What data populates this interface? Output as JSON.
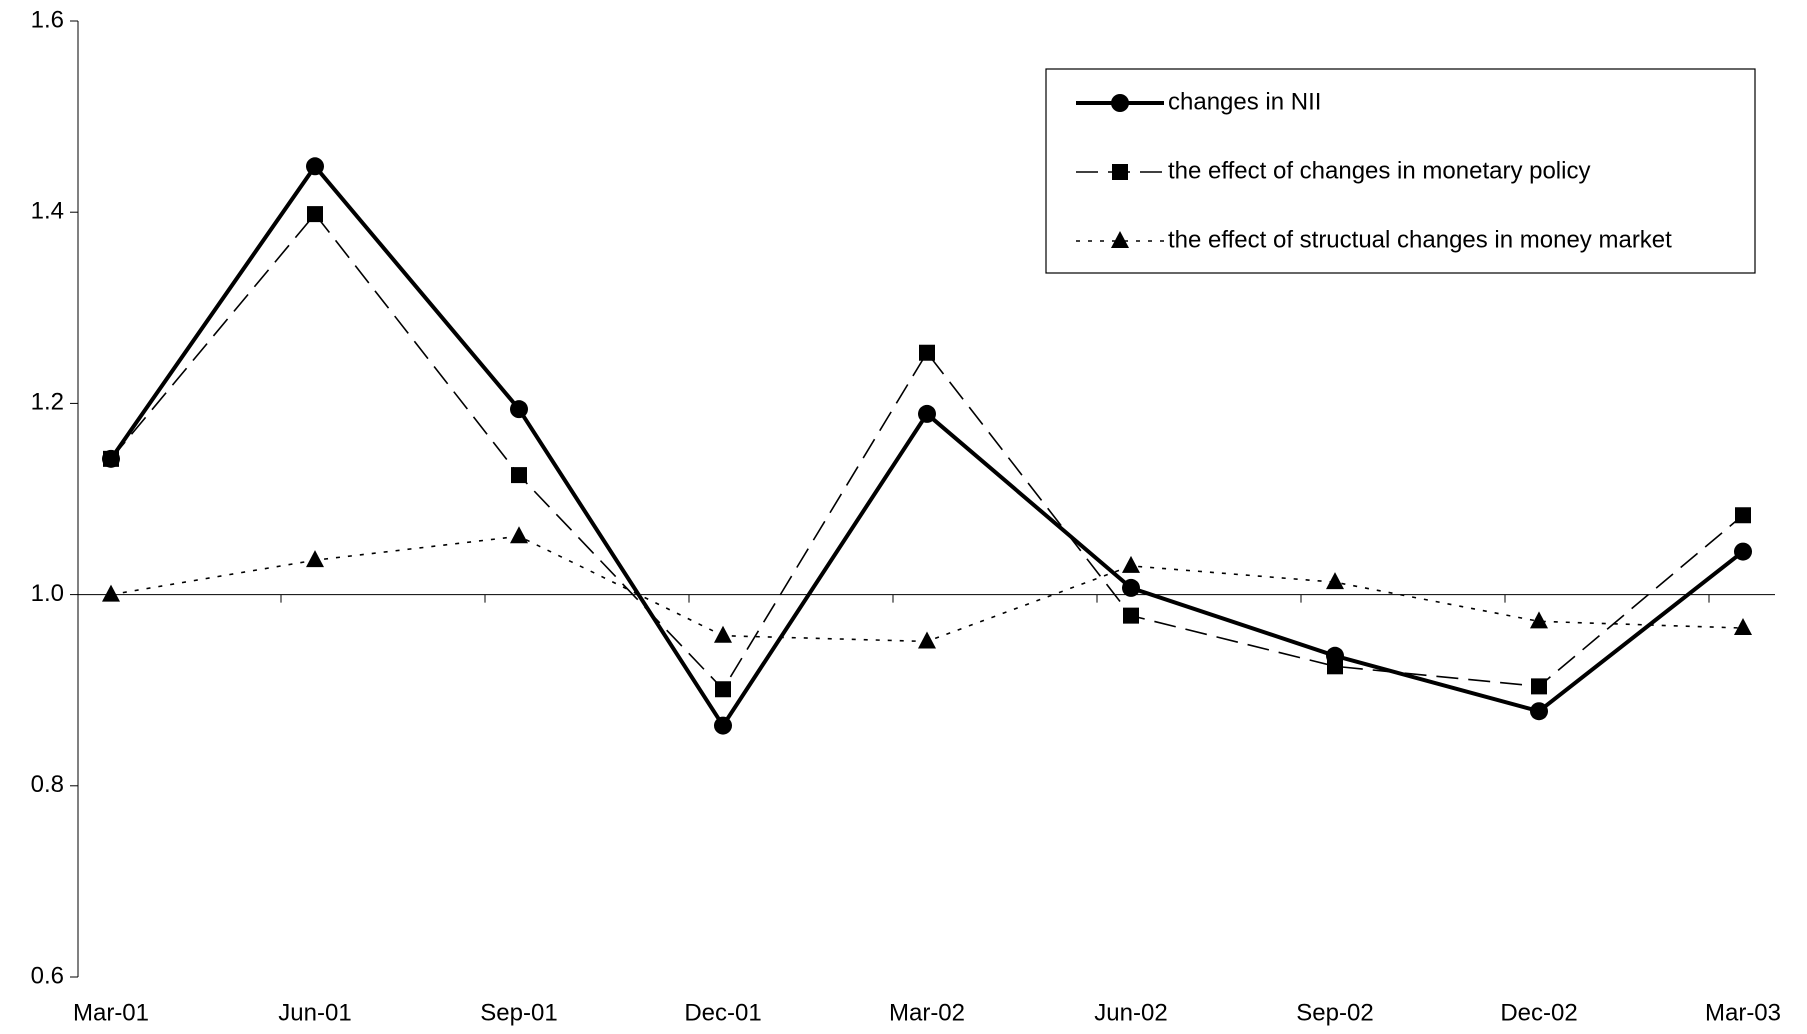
{
  "chart_data": {
    "type": "line",
    "categories": [
      "Mar-01",
      "Jun-01",
      "Sep-01",
      "Dec-01",
      "Mar-02",
      "Jun-02",
      "Sep-02",
      "Dec-02",
      "Mar-03"
    ],
    "series": [
      {
        "name": "changes in NII",
        "color": "#000000",
        "dash": "solid",
        "marker": "circle",
        "values": [
          1.142,
          1.448,
          1.194,
          0.863,
          1.189,
          1.007,
          0.936,
          0.878,
          1.045
        ]
      },
      {
        "name": "the effect of changes in monetary policy",
        "color": "#000000",
        "dash": "dashed",
        "marker": "square",
        "values": [
          1.142,
          1.398,
          1.125,
          0.901,
          1.253,
          0.978,
          0.925,
          0.904,
          1.083
        ]
      },
      {
        "name": "the effect of structual changes in money market",
        "color": "#000000",
        "dash": "dotted",
        "marker": "triangle",
        "values": [
          1.0,
          1.036,
          1.061,
          0.957,
          0.951,
          1.03,
          1.013,
          0.972,
          0.965
        ]
      }
    ],
    "ylim": [
      0.6,
      1.6
    ],
    "yticks": [
      0.6,
      0.8,
      {
        "value": 1.0,
        "label": "1.0"
      },
      1.2,
      1.4,
      1.6
    ],
    "x_axis_crosses": 1.0,
    "grid": false,
    "legend": "upper-right"
  }
}
